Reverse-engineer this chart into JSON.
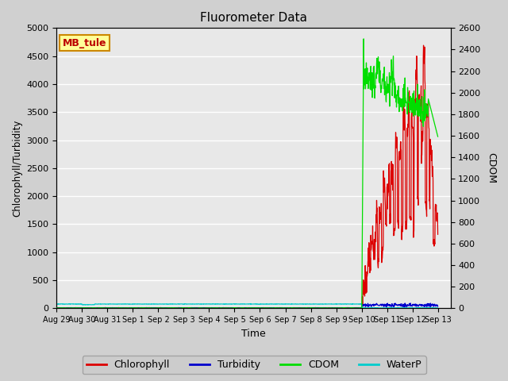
{
  "title": "Fluorometer Data",
  "xlabel": "Time",
  "ylabel_left": "Chlorophyll/Turbidity",
  "ylabel_right": "CDOM",
  "station_label": "MB_tule",
  "ylim_left": [
    0,
    5000
  ],
  "ylim_right": [
    0,
    2600
  ],
  "xlim": [
    0,
    15.5
  ],
  "colors": {
    "chlorophyll": "#dd0000",
    "turbidity": "#0000cc",
    "cdom": "#00dd00",
    "waterp": "#00cccc"
  },
  "fig_facecolor": "#d0d0d0",
  "plot_facecolor": "#e8e8e8",
  "legend_labels": [
    "Chlorophyll",
    "Turbidity",
    "CDOM",
    "WaterP"
  ],
  "xtick_labels": [
    "Aug 29",
    "Aug 30",
    "Aug 31",
    "Sep 1",
    "Sep 2",
    "Sep 3",
    "Sep 4",
    "Sep 5",
    "Sep 6",
    "Sep 7",
    "Sep 8",
    "Sep 9",
    "Sep 10",
    "Sep 11",
    "Sep 12",
    "Sep 13"
  ],
  "yticks_left": [
    0,
    500,
    1000,
    1500,
    2000,
    2500,
    3000,
    3500,
    4000,
    4500,
    5000
  ],
  "yticks_right": [
    0,
    200,
    400,
    600,
    800,
    1000,
    1200,
    1400,
    1600,
    1800,
    2000,
    2200,
    2400,
    2600
  ],
  "event_day": 12.0,
  "n_days": 15,
  "samples_per_day": 96
}
